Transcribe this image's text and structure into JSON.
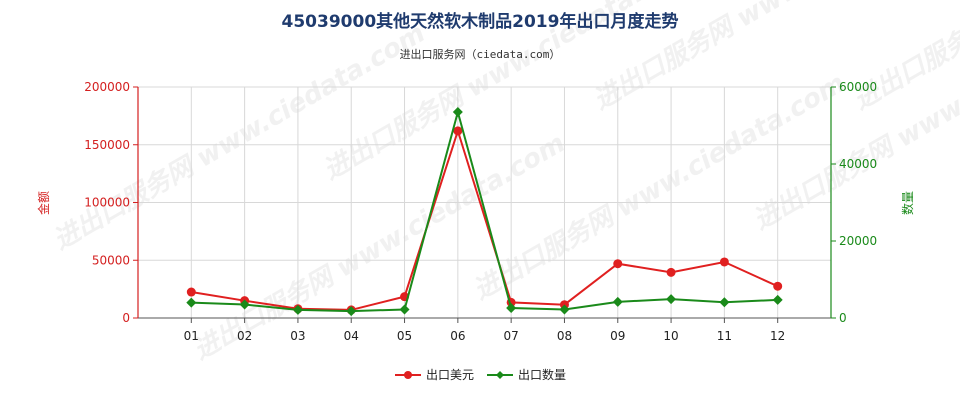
{
  "chart_data": {
    "type": "line",
    "title": "45039000其他天然软木制品2019年出口月度走势",
    "subtitle": "进出口服务网（ciedata.com）",
    "categories": [
      "01",
      "02",
      "03",
      "04",
      "05",
      "06",
      "07",
      "08",
      "09",
      "10",
      "11",
      "12"
    ],
    "y_left": {
      "label": "金额",
      "range": [
        0,
        200000
      ],
      "ticks": [
        "0",
        "50000",
        "100000",
        "150000",
        "200000"
      ],
      "color": "#d42020"
    },
    "y_right": {
      "label": "数量",
      "range": [
        0,
        60000
      ],
      "ticks": [
        "0",
        "20000",
        "40000",
        "60000"
      ],
      "color": "#1a8a1a"
    },
    "series": [
      {
        "name": "出口美元",
        "axis": "left",
        "color": "#e02020",
        "marker": "circle",
        "values": [
          22500,
          15000,
          8000,
          7000,
          18500,
          162000,
          13500,
          11500,
          47000,
          39500,
          48500,
          27500
        ]
      },
      {
        "name": "出口数量",
        "axis": "right",
        "color": "#1a8a1a",
        "marker": "diamond",
        "values": [
          4000,
          3500,
          2100,
          1800,
          2200,
          53500,
          2600,
          2200,
          4200,
          4900,
          4100,
          4700
        ]
      }
    ],
    "grid": true,
    "legend": "bottom-center"
  },
  "watermark": {
    "text": "进出口服务网 www.ciedata.com"
  }
}
